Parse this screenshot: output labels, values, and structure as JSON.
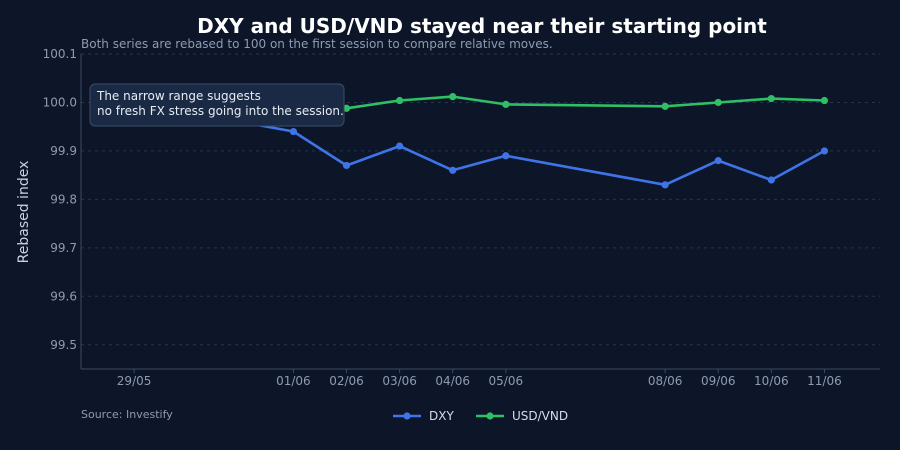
{
  "chart_data": {
    "type": "line",
    "title": "DXY and USD/VND stayed near their starting point",
    "subtitle": "Both series are rebased to 100 on the first session to compare relative moves.",
    "xlabel": "",
    "ylabel": "Rebased index",
    "x_ticks": [
      "29/05",
      "01/06",
      "02/06",
      "03/06",
      "04/06",
      "05/06",
      "08/06",
      "09/06",
      "10/06",
      "11/06"
    ],
    "x": [
      "29/05",
      "01/06",
      "02/06",
      "03/06",
      "04/06",
      "05/06",
      "08/06",
      "09/06",
      "10/06",
      "11/06"
    ],
    "ylim": [
      99.45,
      100.1
    ],
    "y_ticks": [
      99.5,
      99.6,
      99.7,
      99.8,
      99.9,
      100.0,
      100.1
    ],
    "grid": true,
    "legend": "bottom-center",
    "series": [
      {
        "name": "DXY",
        "color": "#3f74e8",
        "values": [
          100.0,
          99.94,
          99.87,
          99.91,
          99.86,
          99.89,
          99.83,
          99.88,
          99.84,
          99.9
        ]
      },
      {
        "name": "USD/VND",
        "color": "#2fbf64",
        "values": [
          100.0,
          99.99,
          99.988,
          100.004,
          100.012,
          99.996,
          99.992,
          100.0,
          100.008,
          100.004
        ]
      }
    ],
    "annotation": {
      "lines": [
        "The narrow range suggests",
        "no fresh FX stress going into the session."
      ]
    },
    "source": "Source: Investify"
  }
}
